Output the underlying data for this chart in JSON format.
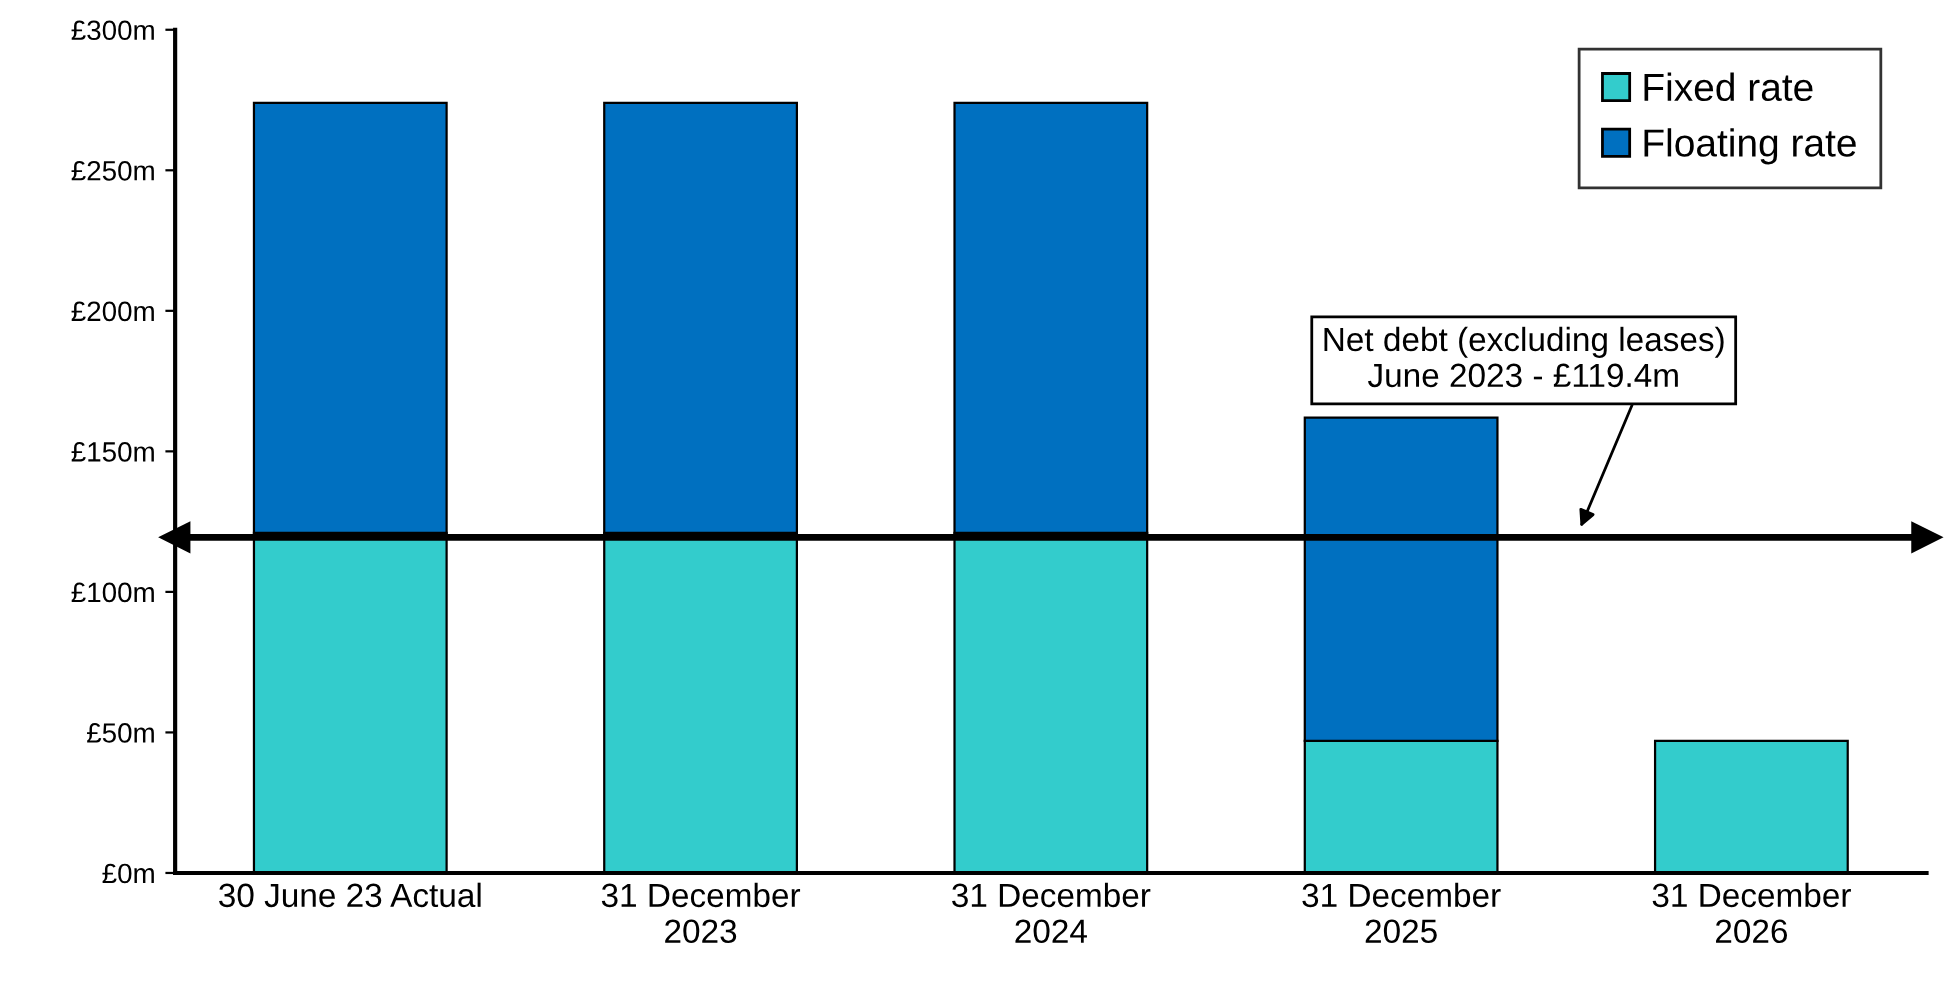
{
  "chart_data": {
    "type": "bar",
    "stacked": true,
    "categories": [
      "30 June 23 Actual",
      "31 December\n2023",
      "31 December\n2024",
      "31 December\n2025",
      "31 December\n2026"
    ],
    "series": [
      {
        "name": "Fixed rate",
        "color": "#33cccc",
        "values": [
          121,
          121,
          121,
          47,
          47
        ]
      },
      {
        "name": "Floating rate",
        "color": "#0070c0",
        "values": [
          153,
          153,
          153,
          115,
          0
        ]
      }
    ],
    "ylim": [
      0,
      300
    ],
    "yticks": [
      {
        "value": 0,
        "label": "£0m"
      },
      {
        "value": 50,
        "label": "£50m"
      },
      {
        "value": 100,
        "label": "£100m"
      },
      {
        "value": 150,
        "label": "£150m"
      },
      {
        "value": 200,
        "label": "£200m"
      },
      {
        "value": 250,
        "label": "£250m"
      },
      {
        "value": 300,
        "label": "£300m"
      }
    ],
    "ref_lines": [
      {
        "axis": "y",
        "value": 119.4,
        "label": "Net debt (excluding leases)\nJune 2023 - £119.4m",
        "color": "#000000"
      }
    ],
    "legend": "top right",
    "grid": false
  }
}
